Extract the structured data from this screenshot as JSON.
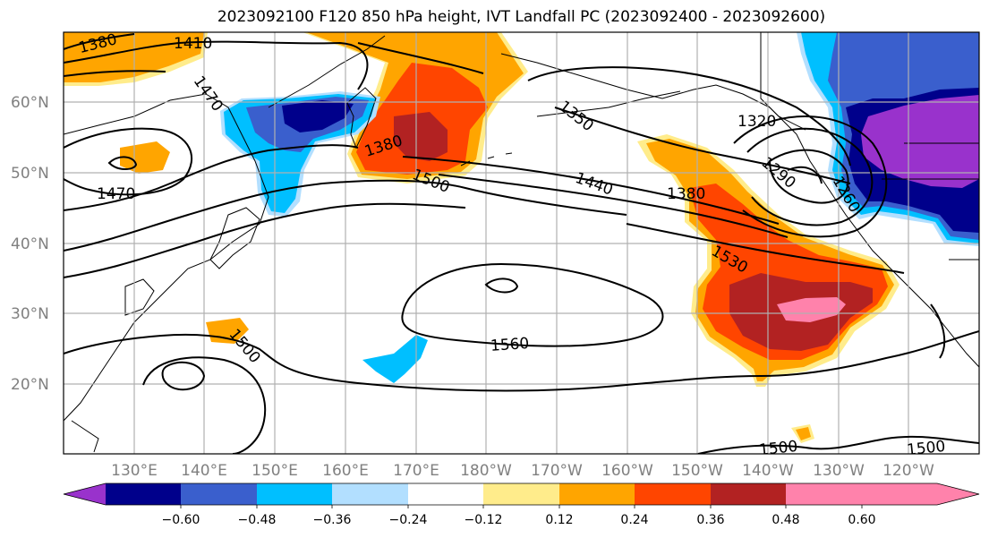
{
  "title": "2023092100 F120 850 hPa height, IVT Landfall PC (2023092400 - 2023092600)",
  "lat_labels": [
    "60°N",
    "50°N",
    "40°N",
    "30°N",
    "20°N"
  ],
  "lon_labels": [
    "130°E",
    "140°E",
    "150°E",
    "160°E",
    "170°E",
    "180°W",
    "170°W",
    "160°W",
    "150°W",
    "140°W",
    "130°W",
    "120°W"
  ],
  "contour_labels": [
    "1380",
    "1410",
    "1470",
    "1470",
    "1380",
    "1350",
    "1320",
    "1500",
    "1440",
    "1380",
    "1290",
    "1260",
    "1530",
    "1560",
    "1500",
    "1500",
    "1500"
  ],
  "colorbar": {
    "tick_labels": [
      "−0.60",
      "−0.48",
      "−0.36",
      "−0.24",
      "−0.12",
      "0.12",
      "0.24",
      "0.36",
      "0.48",
      "0.60"
    ],
    "colors": [
      "#9932CC",
      "#00008B",
      "#3A5FCD",
      "#00BFFF",
      "#B2DFFF",
      "#FFFFFF",
      "#FFEC8B",
      "#FFA500",
      "#FF4500",
      "#B22222",
      "#FF82AB"
    ]
  },
  "colors": {
    "pos_weak": "#FFEC8B",
    "pos_mid": "#FFA500",
    "pos_strong": "#FF4500",
    "pos_stronger": "#B22222",
    "pos_max": "#FF82AB",
    "neg_weak": "#B2DFFF",
    "neg_mid": "#00BFFF",
    "neg_strong": "#3A5FCD",
    "neg_stronger": "#00008B",
    "neg_max": "#9932CC",
    "grid": "#b0b0b0",
    "contour": "#000000"
  }
}
